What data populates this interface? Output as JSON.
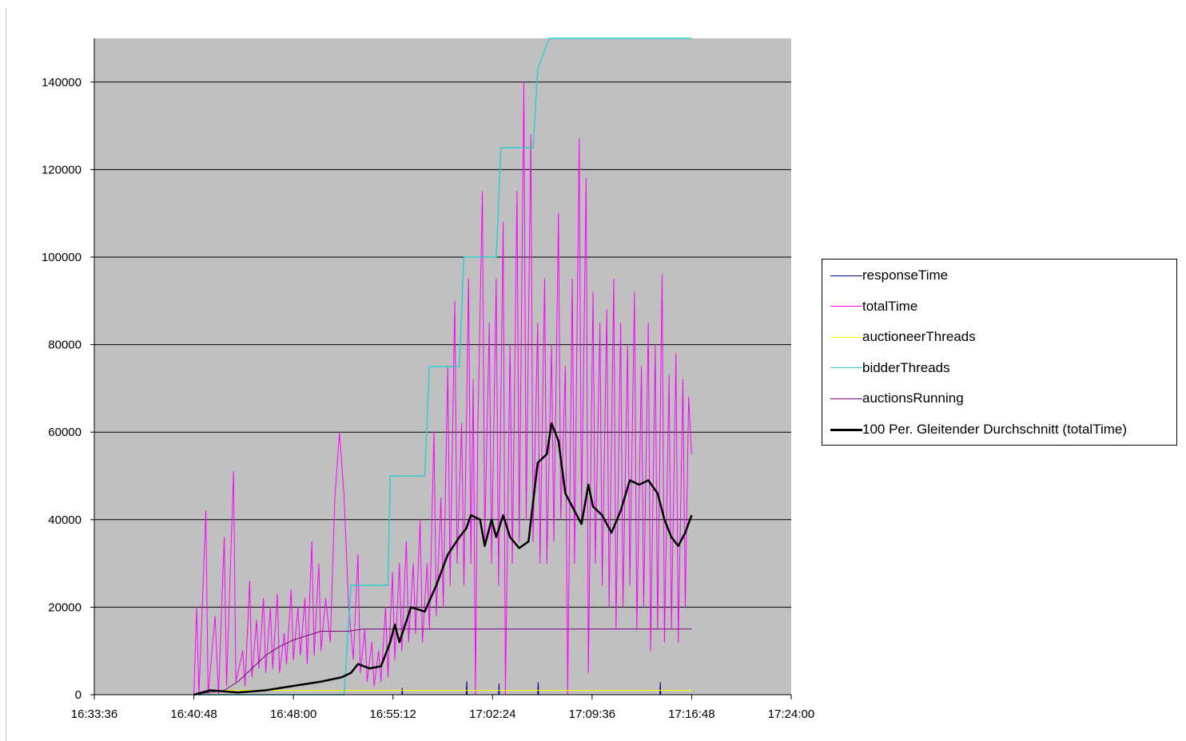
{
  "chart_data": {
    "type": "line",
    "title": "",
    "xlabel": "",
    "ylabel": "",
    "xlim": [
      "16:33:36",
      "17:24:00"
    ],
    "x_ticks": [
      "16:33:36",
      "16:40:48",
      "16:48:00",
      "16:55:12",
      "17:02:24",
      "17:09:36",
      "17:16:48",
      "17:24:00"
    ],
    "ylim": [
      0,
      150000
    ],
    "y_ticks": [
      "0",
      "20000",
      "40000",
      "60000",
      "80000",
      "100000",
      "120000",
      "140000"
    ],
    "grid": "horizontal",
    "plot_background": "#c0c0c0",
    "legend_position": "right",
    "series": [
      {
        "name": "responseTime",
        "color": "#000080",
        "width": 1,
        "points": [
          [
            "16:41:00",
            0
          ],
          [
            "16:55:50",
            0
          ],
          [
            "16:55:52",
            1500
          ],
          [
            "16:55:54",
            0
          ],
          [
            "17:00:30",
            0
          ],
          [
            "17:00:32",
            3000
          ],
          [
            "17:00:34",
            0
          ],
          [
            "17:02:50",
            0
          ],
          [
            "17:02:52",
            2500
          ],
          [
            "17:02:54",
            0
          ],
          [
            "17:05:40",
            0
          ],
          [
            "17:05:42",
            2800
          ],
          [
            "17:05:44",
            0
          ],
          [
            "17:14:30",
            0
          ],
          [
            "17:14:32",
            2800
          ],
          [
            "17:14:34",
            0
          ],
          [
            "17:16:48",
            0
          ]
        ]
      },
      {
        "name": "totalTime",
        "color": "#ff00ff",
        "width": 1,
        "points": [
          [
            "16:40:48",
            0
          ],
          [
            "16:41:00",
            20000
          ],
          [
            "16:41:10",
            0
          ],
          [
            "16:41:40",
            42000
          ],
          [
            "16:41:50",
            0
          ],
          [
            "16:42:20",
            18000
          ],
          [
            "16:42:35",
            0
          ],
          [
            "16:43:00",
            36000
          ],
          [
            "16:43:10",
            2000
          ],
          [
            "16:43:40",
            51000
          ],
          [
            "16:43:50",
            3000
          ],
          [
            "16:44:20",
            10000
          ],
          [
            "16:44:30",
            2000
          ],
          [
            "16:44:50",
            26000
          ],
          [
            "16:45:00",
            4000
          ],
          [
            "16:45:20",
            17000
          ],
          [
            "16:45:30",
            6000
          ],
          [
            "16:45:50",
            22000
          ],
          [
            "16:46:00",
            5000
          ],
          [
            "16:46:20",
            20000
          ],
          [
            "16:46:30",
            6000
          ],
          [
            "16:46:50",
            23000
          ],
          [
            "16:47:00",
            5000
          ],
          [
            "16:47:20",
            14000
          ],
          [
            "16:47:30",
            7000
          ],
          [
            "16:47:50",
            24000
          ],
          [
            "16:48:00",
            8000
          ],
          [
            "16:48:20",
            20000
          ],
          [
            "16:48:30",
            9000
          ],
          [
            "16:48:50",
            22000
          ],
          [
            "16:49:00",
            7000
          ],
          [
            "16:49:20",
            35000
          ],
          [
            "16:49:30",
            9000
          ],
          [
            "16:49:50",
            30000
          ],
          [
            "16:50:00",
            10000
          ],
          [
            "16:50:20",
            22000
          ],
          [
            "16:50:40",
            12000
          ],
          [
            "16:51:00",
            45000
          ],
          [
            "16:51:20",
            60000
          ],
          [
            "16:51:40",
            45000
          ],
          [
            "16:52:00",
            20000
          ],
          [
            "16:52:20",
            8000
          ],
          [
            "16:52:40",
            32000
          ],
          [
            "16:52:50",
            5000
          ],
          [
            "16:53:10",
            15000
          ],
          [
            "16:53:20",
            3000
          ],
          [
            "16:53:40",
            12000
          ],
          [
            "16:53:50",
            2000
          ],
          [
            "16:54:10",
            10000
          ],
          [
            "16:54:20",
            3000
          ],
          [
            "16:54:40",
            20000
          ],
          [
            "16:54:50",
            4000
          ],
          [
            "16:55:10",
            28000
          ],
          [
            "16:55:20",
            8000
          ],
          [
            "16:55:40",
            30000
          ],
          [
            "16:55:50",
            10000
          ],
          [
            "16:56:10",
            35000
          ],
          [
            "16:56:20",
            12000
          ],
          [
            "16:56:40",
            30000
          ],
          [
            "16:56:50",
            14000
          ],
          [
            "16:57:10",
            40000
          ],
          [
            "16:57:20",
            12000
          ],
          [
            "16:57:40",
            30000
          ],
          [
            "16:57:50",
            15000
          ],
          [
            "16:58:10",
            60000
          ],
          [
            "16:58:20",
            18000
          ],
          [
            "16:58:40",
            45000
          ],
          [
            "16:58:50",
            20000
          ],
          [
            "16:59:10",
            75000
          ],
          [
            "16:59:20",
            25000
          ],
          [
            "16:59:40",
            90000
          ],
          [
            "16:59:50",
            30000
          ],
          [
            "17:00:10",
            62000
          ],
          [
            "17:00:20",
            25000
          ],
          [
            "17:00:40",
            95000
          ],
          [
            "17:00:50",
            30000
          ],
          [
            "17:01:00",
            72000
          ],
          [
            "17:01:10",
            0
          ],
          [
            "17:01:20",
            60000
          ],
          [
            "17:01:40",
            115000
          ],
          [
            "17:01:50",
            35000
          ],
          [
            "17:02:10",
            85000
          ],
          [
            "17:02:20",
            30000
          ],
          [
            "17:02:40",
            95000
          ],
          [
            "17:02:50",
            25000
          ],
          [
            "17:03:10",
            108000
          ],
          [
            "17:03:20",
            0
          ],
          [
            "17:03:40",
            80000
          ],
          [
            "17:03:50",
            30000
          ],
          [
            "17:04:10",
            115000
          ],
          [
            "17:04:20",
            35000
          ],
          [
            "17:04:40",
            140000
          ],
          [
            "17:04:50",
            40000
          ],
          [
            "17:05:10",
            128000
          ],
          [
            "17:05:20",
            35000
          ],
          [
            "17:05:40",
            85000
          ],
          [
            "17:05:50",
            30000
          ],
          [
            "17:06:10",
            95000
          ],
          [
            "17:06:20",
            30000
          ],
          [
            "17:06:40",
            80000
          ],
          [
            "17:06:50",
            35000
          ],
          [
            "17:07:10",
            110000
          ],
          [
            "17:07:20",
            40000
          ],
          [
            "17:07:40",
            75000
          ],
          [
            "17:07:50",
            0
          ],
          [
            "17:08:10",
            95000
          ],
          [
            "17:08:20",
            30000
          ],
          [
            "17:08:40",
            127000
          ],
          [
            "17:08:50",
            40000
          ],
          [
            "17:09:10",
            118000
          ],
          [
            "17:09:20",
            5000
          ],
          [
            "17:09:40",
            92000
          ],
          [
            "17:09:50",
            30000
          ],
          [
            "17:10:10",
            85000
          ],
          [
            "17:10:20",
            25000
          ],
          [
            "17:10:40",
            88000
          ],
          [
            "17:10:50",
            20000
          ],
          [
            "17:11:10",
            95000
          ],
          [
            "17:11:20",
            15000
          ],
          [
            "17:11:40",
            85000
          ],
          [
            "17:11:50",
            20000
          ],
          [
            "17:12:10",
            80000
          ],
          [
            "17:12:20",
            25000
          ],
          [
            "17:12:40",
            92000
          ],
          [
            "17:12:50",
            15000
          ],
          [
            "17:13:10",
            75000
          ],
          [
            "17:13:20",
            20000
          ],
          [
            "17:13:40",
            85000
          ],
          [
            "17:13:50",
            10000
          ],
          [
            "17:14:10",
            80000
          ],
          [
            "17:14:20",
            15000
          ],
          [
            "17:14:40",
            96000
          ],
          [
            "17:14:50",
            12000
          ],
          [
            "17:15:10",
            73000
          ],
          [
            "17:15:20",
            15000
          ],
          [
            "17:15:40",
            78000
          ],
          [
            "17:15:50",
            12000
          ],
          [
            "17:16:10",
            72000
          ],
          [
            "17:16:20",
            20000
          ],
          [
            "17:16:35",
            68000
          ],
          [
            "17:16:48",
            55000
          ]
        ]
      },
      {
        "name": "auctioneerThreads",
        "color": "#ffff00",
        "width": 1,
        "points": [
          [
            "16:40:48",
            0
          ],
          [
            "16:43:00",
            1000
          ],
          [
            "17:16:48",
            1000
          ]
        ]
      },
      {
        "name": "bidderThreads",
        "color": "#33cccc",
        "width": 1.5,
        "points": [
          [
            "16:40:48",
            0
          ],
          [
            "16:51:40",
            0
          ],
          [
            "16:52:10",
            25000
          ],
          [
            "16:54:50",
            25000
          ],
          [
            "16:55:00",
            50000
          ],
          [
            "16:57:30",
            50000
          ],
          [
            "16:57:50",
            75000
          ],
          [
            "17:00:00",
            75000
          ],
          [
            "17:00:20",
            100000
          ],
          [
            "17:02:40",
            100000
          ],
          [
            "17:03:00",
            125000
          ],
          [
            "17:05:20",
            125000
          ],
          [
            "17:05:40",
            143000
          ],
          [
            "17:06:30",
            150000
          ],
          [
            "17:16:48",
            150000
          ]
        ]
      },
      {
        "name": "auctionsRunning",
        "color": "#800080",
        "width": 1,
        "points": [
          [
            "16:40:48",
            0
          ],
          [
            "16:43:00",
            1000
          ],
          [
            "16:44:00",
            3000
          ],
          [
            "16:45:00",
            6000
          ],
          [
            "16:46:00",
            9000
          ],
          [
            "16:47:00",
            11000
          ],
          [
            "16:48:00",
            12500
          ],
          [
            "16:49:00",
            13500
          ],
          [
            "16:50:00",
            14500
          ],
          [
            "16:52:00",
            14500
          ],
          [
            "16:53:00",
            15000
          ],
          [
            "17:16:48",
            15000
          ]
        ]
      },
      {
        "name": "100 Per. Gleitender Durchschnitt (totalTime)",
        "color": "#000000",
        "width": 2.5,
        "points": [
          [
            "16:40:48",
            0
          ],
          [
            "16:42:00",
            1000
          ],
          [
            "16:44:00",
            500
          ],
          [
            "16:46:00",
            1000
          ],
          [
            "16:48:00",
            2000
          ],
          [
            "16:50:00",
            3000
          ],
          [
            "16:51:30",
            4000
          ],
          [
            "16:52:10",
            5000
          ],
          [
            "16:52:40",
            7000
          ],
          [
            "16:53:30",
            6000
          ],
          [
            "16:54:20",
            6500
          ],
          [
            "16:55:00",
            12000
          ],
          [
            "16:55:20",
            16000
          ],
          [
            "16:55:40",
            12000
          ],
          [
            "16:56:30",
            20000
          ],
          [
            "16:57:30",
            19000
          ],
          [
            "16:58:20",
            25000
          ],
          [
            "16:59:10",
            32000
          ],
          [
            "17:00:00",
            36000
          ],
          [
            "17:00:30",
            38000
          ],
          [
            "17:00:50",
            41000
          ],
          [
            "17:01:30",
            40000
          ],
          [
            "17:01:50",
            34000
          ],
          [
            "17:02:20",
            40000
          ],
          [
            "17:02:40",
            36000
          ],
          [
            "17:03:10",
            41000
          ],
          [
            "17:03:40",
            36000
          ],
          [
            "17:04:20",
            33500
          ],
          [
            "17:05:00",
            35000
          ],
          [
            "17:05:40",
            53000
          ],
          [
            "17:06:20",
            55000
          ],
          [
            "17:06:40",
            62000
          ],
          [
            "17:07:10",
            58000
          ],
          [
            "17:07:40",
            46000
          ],
          [
            "17:08:20",
            42000
          ],
          [
            "17:08:50",
            39000
          ],
          [
            "17:09:20",
            48000
          ],
          [
            "17:09:40",
            43000
          ],
          [
            "17:10:20",
            41000
          ],
          [
            "17:11:00",
            37000
          ],
          [
            "17:11:40",
            42000
          ],
          [
            "17:12:20",
            49000
          ],
          [
            "17:13:00",
            48000
          ],
          [
            "17:13:40",
            49000
          ],
          [
            "17:14:20",
            46000
          ],
          [
            "17:14:50",
            40000
          ],
          [
            "17:15:20",
            36000
          ],
          [
            "17:15:50",
            34000
          ],
          [
            "17:16:20",
            37000
          ],
          [
            "17:16:48",
            41000
          ]
        ]
      }
    ]
  }
}
